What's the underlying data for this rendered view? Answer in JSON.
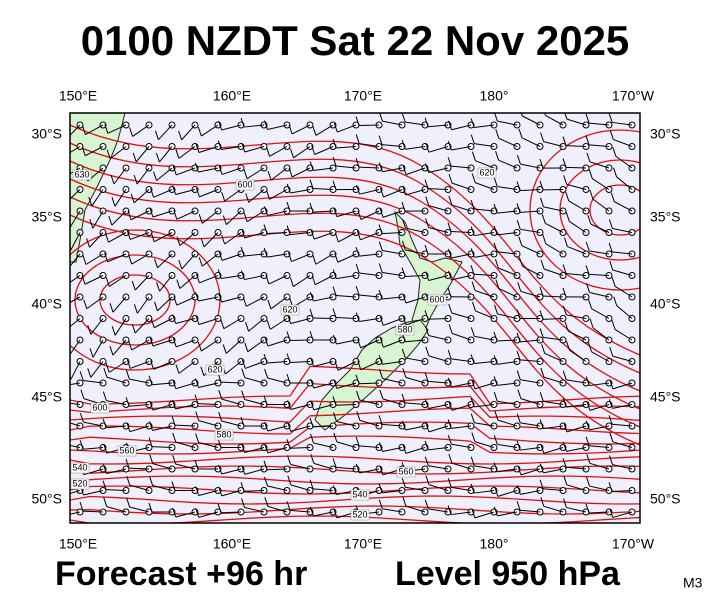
{
  "title": "0100 NZDT Sat 22 Nov 2025",
  "axes": {
    "top": [
      "150°E",
      "160°E",
      "170°E",
      "180°",
      "170°W"
    ],
    "bottom": [
      "150°E",
      "160°E",
      "170°E",
      "180°",
      "170°W"
    ],
    "left": [
      "30°S",
      "35°S",
      "40°S",
      "45°S",
      "50°S"
    ],
    "right": [
      "30°S",
      "35°S",
      "40°S",
      "45°S",
      "50°S"
    ]
  },
  "contour_labels": [
    "630",
    "600",
    "620",
    "620",
    "620",
    "600",
    "580",
    "560",
    "540",
    "520",
    "600",
    "580",
    "560",
    "540",
    "520"
  ],
  "footer": {
    "forecast": "Forecast +96 hr",
    "level": "Level 950 hPa",
    "model": "M3"
  }
}
